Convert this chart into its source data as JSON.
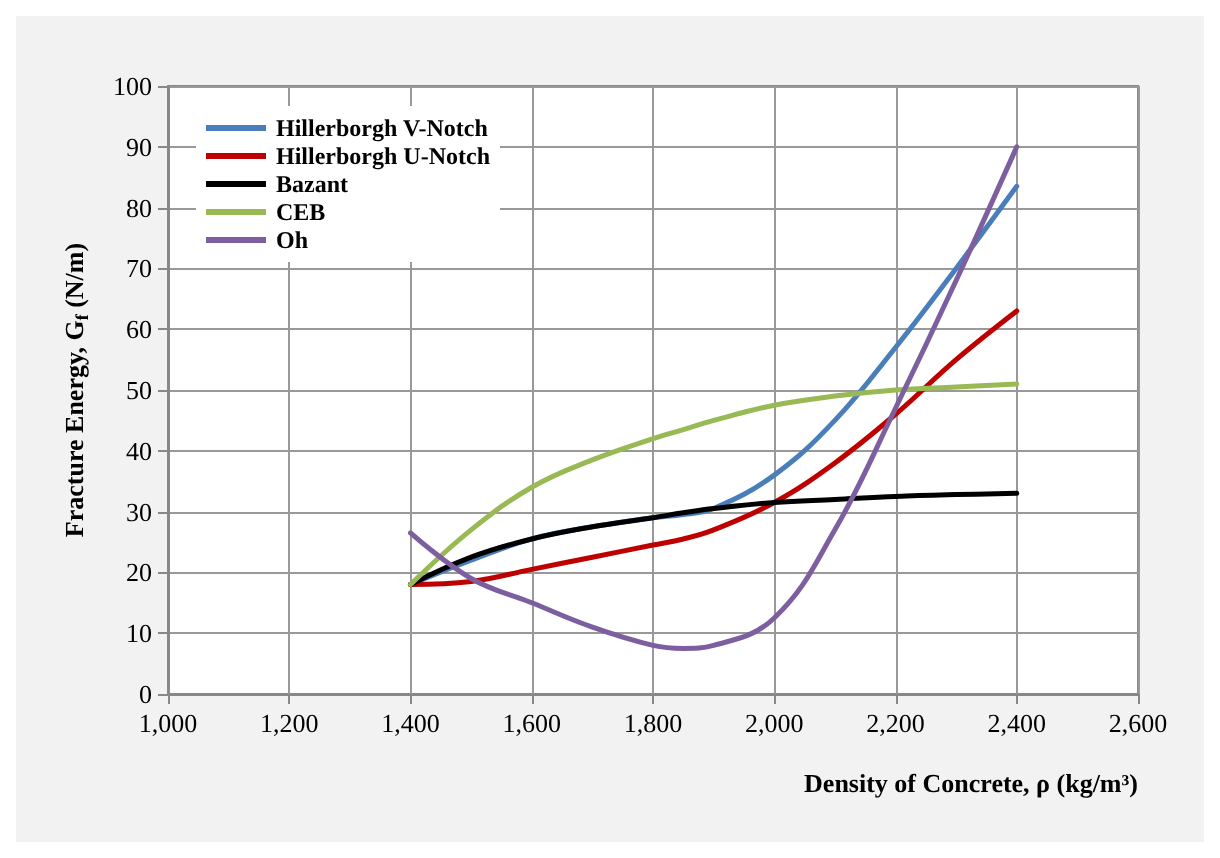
{
  "chart_data": {
    "type": "line",
    "xlabel": "Density of Concrete, ρ (kg/m³)",
    "ylabel": "Fracture Energy, G$_{f}$ (N/m)",
    "x": [
      1400,
      1500,
      1600,
      1700,
      1800,
      1850,
      1900,
      2000,
      2100,
      2200,
      2300,
      2400
    ],
    "series": [
      {
        "name": "Hillerborgh V-Notch",
        "color": "#4a7ebb",
        "values": [
          18,
          22,
          25.5,
          27.5,
          29,
          29.5,
          30.5,
          36,
          45,
          57,
          70,
          83.5
        ]
      },
      {
        "name": "Hillerborgh U-Notch",
        "color": "#be0000",
        "values": [
          18,
          18.5,
          20.5,
          22.5,
          24.5,
          25.5,
          27,
          31.5,
          38,
          46,
          55,
          63
        ]
      },
      {
        "name": "Bazant",
        "color": "#000000",
        "values": [
          18,
          22.5,
          25.5,
          27.5,
          29,
          29.8,
          30.5,
          31.5,
          32,
          32.5,
          32.8,
          33
        ]
      },
      {
        "name": "CEB",
        "color": "#98b954",
        "values": [
          18,
          27,
          34,
          38.5,
          42,
          43.5,
          45,
          47.5,
          49,
          50,
          50.5,
          51
        ]
      },
      {
        "name": "Oh",
        "color": "#7d5fa0",
        "values": [
          26.5,
          19,
          15,
          11,
          8,
          7.5,
          8,
          12.5,
          27,
          47,
          68,
          90
        ]
      }
    ],
    "xlim": [
      1000,
      2600
    ],
    "xticks": [
      {
        "value": 1000,
        "label": "1,000"
      },
      {
        "value": 1200,
        "label": "1,200"
      },
      {
        "value": 1400,
        "label": "1,400"
      },
      {
        "value": 1600,
        "label": "1,600"
      },
      {
        "value": 1800,
        "label": "1,800"
      },
      {
        "value": 2000,
        "label": "2,000"
      },
      {
        "value": 2200,
        "label": "2,200"
      },
      {
        "value": 2400,
        "label": "2,400"
      },
      {
        "value": 2600,
        "label": "2,600"
      }
    ],
    "ylim": [
      0,
      100
    ],
    "yticks": [
      0,
      10,
      20,
      30,
      40,
      50,
      60,
      70,
      80,
      90,
      100
    ],
    "grid": true,
    "legend": "top left",
    "marker": "none",
    "line_style": "solid"
  }
}
